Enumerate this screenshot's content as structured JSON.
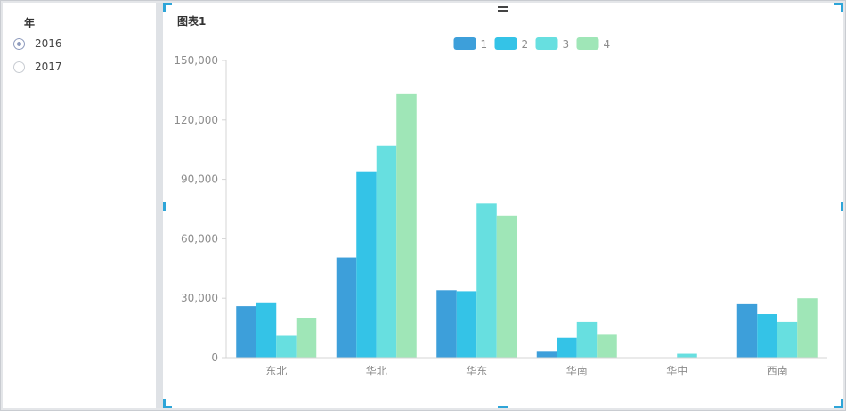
{
  "filter": {
    "title": "年",
    "options": [
      {
        "label": "2016",
        "checked": true
      },
      {
        "label": "2017",
        "checked": false
      }
    ]
  },
  "chart_panel": {
    "title": "图表1"
  },
  "colors": {
    "series": [
      "#3d9fda",
      "#34c3e7",
      "#67dfe0",
      "#9fe6b7"
    ],
    "axis_text": "#8c8c8c",
    "radio_checked": "#8e9bbd",
    "selection_handle": "#2ea5d8"
  },
  "chart_data": {
    "type": "bar",
    "title": "图表1",
    "xlabel": "",
    "ylabel": "",
    "categories": [
      "东北",
      "华北",
      "华东",
      "华南",
      "华中",
      "西南"
    ],
    "series": [
      {
        "name": "1",
        "values": [
          26000,
          50500,
          34000,
          3000,
          0,
          27000
        ]
      },
      {
        "name": "2",
        "values": [
          27500,
          94000,
          33500,
          10000,
          0,
          22000
        ]
      },
      {
        "name": "3",
        "values": [
          11000,
          107000,
          78000,
          18000,
          2000,
          18000
        ]
      },
      {
        "name": "4",
        "values": [
          20000,
          133000,
          71500,
          11500,
          0,
          30000
        ]
      }
    ],
    "ylim": [
      0,
      150000
    ],
    "yticks": [
      0,
      30000,
      60000,
      90000,
      120000,
      150000
    ],
    "ytick_labels": [
      "0",
      "30,000",
      "60,000",
      "90,000",
      "120,000",
      "150,000"
    ],
    "grid": false,
    "legend_position": "top-center"
  }
}
